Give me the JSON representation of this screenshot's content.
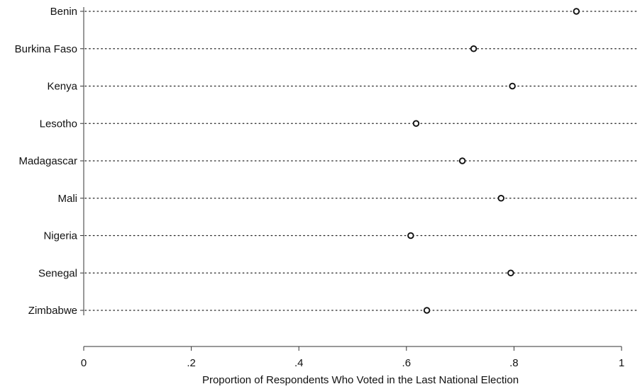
{
  "chart_data": {
    "type": "scatter",
    "subtype": "dot-plot",
    "categories": [
      "Benin",
      "Burkina Faso",
      "Kenya",
      "Lesotho",
      "Madagascar",
      "Mali",
      "Nigeria",
      "Senegal",
      "Zimbabwe"
    ],
    "values": [
      0.916,
      0.725,
      0.797,
      0.618,
      0.704,
      0.776,
      0.608,
      0.794,
      0.638
    ],
    "xlabel": "Proportion of Respondents Who Voted in the Last National Election",
    "xlim": [
      0,
      1
    ],
    "xticks": [
      0,
      0.2,
      0.4,
      0.6,
      0.8,
      1
    ],
    "xtick_labels": [
      "0",
      ".2",
      ".4",
      ".6",
      ".8",
      "1"
    ],
    "grid": false,
    "dotted_guide_lines": true,
    "marker": "hollow-circle",
    "colors": {
      "marker": "#111111",
      "guide": "#222222",
      "axis": "#333333"
    }
  }
}
